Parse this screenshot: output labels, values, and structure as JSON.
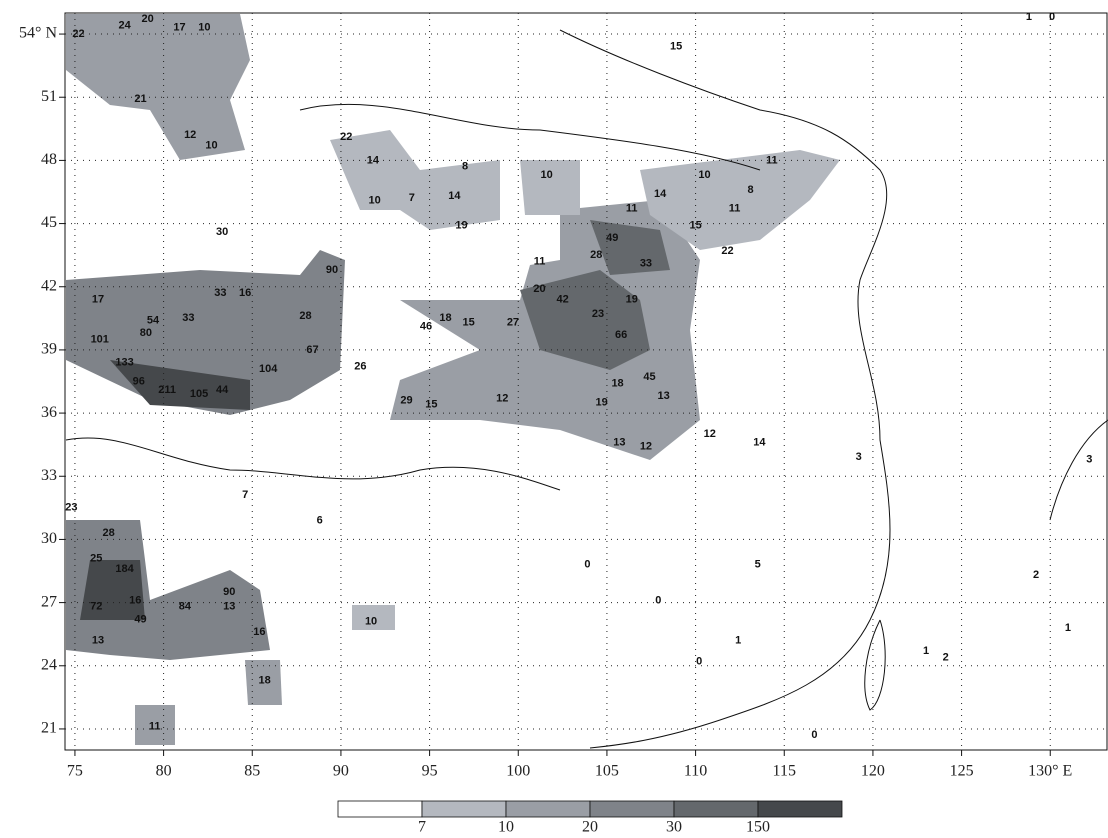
{
  "map": {
    "xlim": [
      74.44,
      133.2
    ],
    "ylim": [
      20,
      55
    ],
    "xticks": [
      75,
      80,
      85,
      90,
      95,
      100,
      105,
      110,
      115,
      120,
      125,
      {
        "value": 130,
        "label": "130° E"
      }
    ],
    "yticks": [
      21,
      24,
      27,
      30,
      33,
      36,
      39,
      42,
      45,
      48,
      51,
      {
        "value": 54,
        "label": "54° N"
      }
    ],
    "grid": true,
    "legend": {
      "colors": [
        "#ffffff",
        "#b4b8bf",
        "#9a9ea5",
        "#7f8389",
        "#64686c",
        "#45484b"
      ],
      "bounds": [
        7,
        10,
        20,
        30,
        150
      ]
    },
    "stations": [
      {
        "lon": 75.2,
        "lat": 54.0,
        "value": 22
      },
      {
        "lon": 77.8,
        "lat": 54.4,
        "value": 24
      },
      {
        "lon": 79.1,
        "lat": 54.7,
        "value": 20
      },
      {
        "lon": 80.9,
        "lat": 54.3,
        "value": 17
      },
      {
        "lon": 82.3,
        "lat": 54.3,
        "value": 10
      },
      {
        "lon": 78.7,
        "lat": 50.9,
        "value": 21
      },
      {
        "lon": 81.5,
        "lat": 49.2,
        "value": 12
      },
      {
        "lon": 82.7,
        "lat": 48.7,
        "value": 10
      },
      {
        "lon": 83.3,
        "lat": 44.6,
        "value": 30
      },
      {
        "lon": 83.2,
        "lat": 41.7,
        "value": 33
      },
      {
        "lon": 84.6,
        "lat": 41.7,
        "value": 16
      },
      {
        "lon": 76.3,
        "lat": 41.4,
        "value": 17
      },
      {
        "lon": 79.4,
        "lat": 40.4,
        "value": 54
      },
      {
        "lon": 81.4,
        "lat": 40.5,
        "value": 33
      },
      {
        "lon": 79.0,
        "lat": 39.8,
        "value": 80
      },
      {
        "lon": 76.4,
        "lat": 39.5,
        "value": 101
      },
      {
        "lon": 77.8,
        "lat": 38.4,
        "value": 133
      },
      {
        "lon": 78.6,
        "lat": 37.5,
        "value": 96
      },
      {
        "lon": 80.2,
        "lat": 37.1,
        "value": 211
      },
      {
        "lon": 82.0,
        "lat": 36.9,
        "value": 105
      },
      {
        "lon": 83.3,
        "lat": 37.1,
        "value": 44
      },
      {
        "lon": 85.9,
        "lat": 38.1,
        "value": 104
      },
      {
        "lon": 88.4,
        "lat": 39.0,
        "value": 67
      },
      {
        "lon": 88.0,
        "lat": 40.6,
        "value": 28
      },
      {
        "lon": 89.5,
        "lat": 42.8,
        "value": 90
      },
      {
        "lon": 91.1,
        "lat": 38.2,
        "value": 26
      },
      {
        "lon": 93.7,
        "lat": 36.6,
        "value": 29
      },
      {
        "lon": 95.1,
        "lat": 36.4,
        "value": 15
      },
      {
        "lon": 94.8,
        "lat": 40.1,
        "value": 46
      },
      {
        "lon": 95.9,
        "lat": 40.5,
        "value": 18
      },
      {
        "lon": 97.2,
        "lat": 40.3,
        "value": 15
      },
      {
        "lon": 99.7,
        "lat": 40.3,
        "value": 27
      },
      {
        "lon": 101.2,
        "lat": 41.9,
        "value": 20
      },
      {
        "lon": 102.5,
        "lat": 41.4,
        "value": 42
      },
      {
        "lon": 104.5,
        "lat": 40.7,
        "value": 23
      },
      {
        "lon": 106.4,
        "lat": 41.4,
        "value": 19
      },
      {
        "lon": 105.8,
        "lat": 39.7,
        "value": 66
      },
      {
        "lon": 105.3,
        "lat": 44.3,
        "value": 49
      },
      {
        "lon": 104.4,
        "lat": 43.5,
        "value": 28
      },
      {
        "lon": 107.2,
        "lat": 43.1,
        "value": 33
      },
      {
        "lon": 101.2,
        "lat": 43.2,
        "value": 11
      },
      {
        "lon": 106.4,
        "lat": 45.7,
        "value": 11
      },
      {
        "lon": 96.8,
        "lat": 44.9,
        "value": 19
      },
      {
        "lon": 96.4,
        "lat": 46.3,
        "value": 14
      },
      {
        "lon": 101.6,
        "lat": 47.3,
        "value": 10
      },
      {
        "lon": 108.0,
        "lat": 46.4,
        "value": 14
      },
      {
        "lon": 110.5,
        "lat": 47.3,
        "value": 10
      },
      {
        "lon": 114.3,
        "lat": 48.0,
        "value": 11
      },
      {
        "lon": 113.1,
        "lat": 46.6,
        "value": 8
      },
      {
        "lon": 112.2,
        "lat": 45.7,
        "value": 11
      },
      {
        "lon": 111.8,
        "lat": 43.7,
        "value": 22
      },
      {
        "lon": 110.0,
        "lat": 44.9,
        "value": 15
      },
      {
        "lon": 108.9,
        "lat": 53.4,
        "value": 15
      },
      {
        "lon": 91.8,
        "lat": 48.0,
        "value": 14
      },
      {
        "lon": 90.3,
        "lat": 49.1,
        "value": 22
      },
      {
        "lon": 91.9,
        "lat": 46.1,
        "value": 10
      },
      {
        "lon": 94.0,
        "lat": 46.2,
        "value": 7
      },
      {
        "lon": 97.0,
        "lat": 47.7,
        "value": 8
      },
      {
        "lon": 107.4,
        "lat": 37.7,
        "value": 45
      },
      {
        "lon": 108.2,
        "lat": 36.8,
        "value": 13
      },
      {
        "lon": 105.6,
        "lat": 37.4,
        "value": 18
      },
      {
        "lon": 104.7,
        "lat": 36.5,
        "value": 19
      },
      {
        "lon": 99.1,
        "lat": 36.7,
        "value": 12
      },
      {
        "lon": 105.7,
        "lat": 34.6,
        "value": 13
      },
      {
        "lon": 107.2,
        "lat": 34.4,
        "value": 12
      },
      {
        "lon": 110.8,
        "lat": 35.0,
        "value": 12
      },
      {
        "lon": 113.6,
        "lat": 34.6,
        "value": 14
      },
      {
        "lon": 84.6,
        "lat": 32.1,
        "value": 7
      },
      {
        "lon": 88.8,
        "lat": 30.9,
        "value": 6
      },
      {
        "lon": 74.8,
        "lat": 31.5,
        "value": 23
      },
      {
        "lon": 76.9,
        "lat": 30.3,
        "value": 28
      },
      {
        "lon": 76.2,
        "lat": 29.1,
        "value": 25
      },
      {
        "lon": 77.8,
        "lat": 28.6,
        "value": 184
      },
      {
        "lon": 76.2,
        "lat": 26.8,
        "value": 72
      },
      {
        "lon": 78.4,
        "lat": 27.1,
        "value": 16
      },
      {
        "lon": 78.7,
        "lat": 26.2,
        "value": 49
      },
      {
        "lon": 81.2,
        "lat": 26.8,
        "value": 84
      },
      {
        "lon": 83.7,
        "lat": 27.5,
        "value": 90
      },
      {
        "lon": 83.7,
        "lat": 26.8,
        "value": 13
      },
      {
        "lon": 76.3,
        "lat": 25.2,
        "value": 13
      },
      {
        "lon": 85.4,
        "lat": 25.6,
        "value": 16
      },
      {
        "lon": 85.7,
        "lat": 23.3,
        "value": 18
      },
      {
        "lon": 79.5,
        "lat": 21.1,
        "value": 11
      },
      {
        "lon": 91.7,
        "lat": 26.1,
        "value": 10
      },
      {
        "lon": 110.2,
        "lat": 24.2,
        "value": 0
      },
      {
        "lon": 112.4,
        "lat": 25.2,
        "value": 1
      },
      {
        "lon": 129.2,
        "lat": 28.3,
        "value": 2
      },
      {
        "lon": 130.1,
        "lat": 54.8,
        "value": 0
      },
      {
        "lon": 128.8,
        "lat": 54.8,
        "value": 1
      },
      {
        "lon": 124.1,
        "lat": 24.4,
        "value": 2
      },
      {
        "lon": 131.0,
        "lat": 25.8,
        "value": 1
      },
      {
        "lon": 132.2,
        "lat": 33.8,
        "value": 3
      },
      {
        "lon": 116.7,
        "lat": 20.7,
        "value": 0
      },
      {
        "lon": 119.2,
        "lat": 33.9,
        "value": 3
      },
      {
        "lon": 103.9,
        "lat": 28.8,
        "value": 0
      },
      {
        "lon": 113.5,
        "lat": 28.8,
        "value": 5
      },
      {
        "lon": 107.9,
        "lat": 27.1,
        "value": 0
      },
      {
        "lon": 123.0,
        "lat": 24.7,
        "value": 1
      }
    ]
  }
}
